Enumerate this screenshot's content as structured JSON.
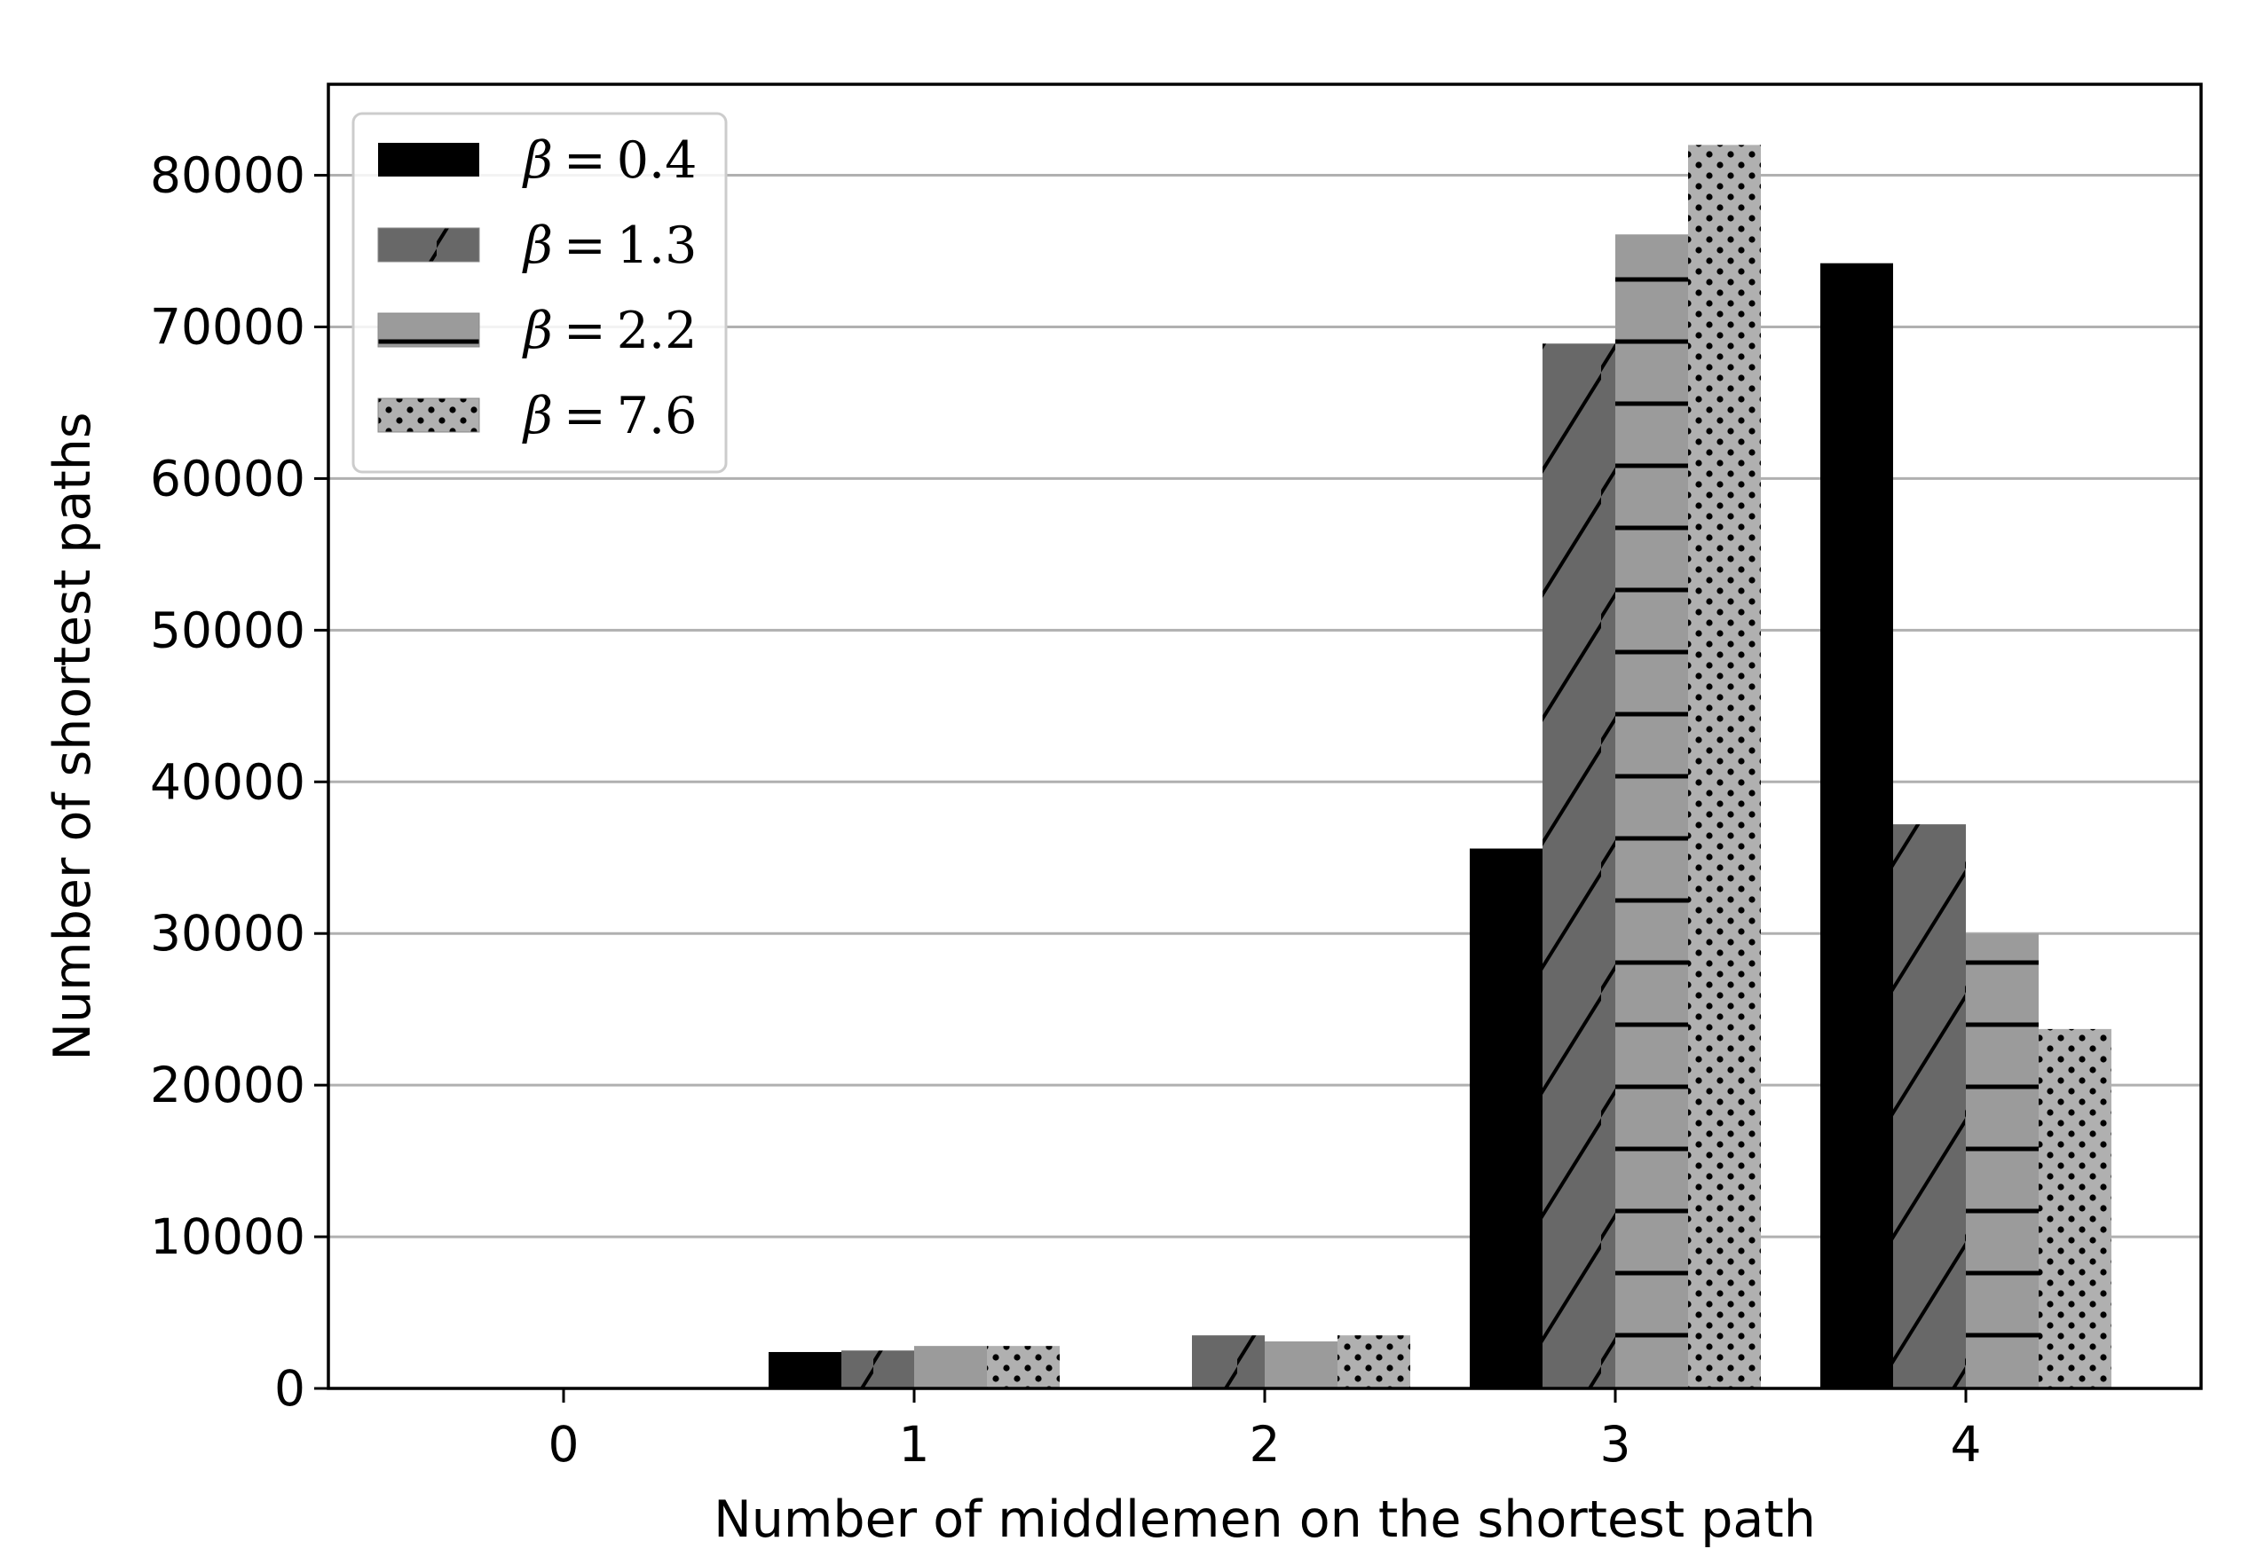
{
  "chart_data": {
    "type": "bar",
    "categories": [
      "0",
      "1",
      "2",
      "3",
      "4"
    ],
    "series": [
      {
        "name": "β = 0.4",
        "beta_symbol": "β",
        "beta_value": "0.4",
        "color": "#000000",
        "pattern": "solid",
        "values": [
          0,
          2400,
          0,
          35600,
          74200
        ]
      },
      {
        "name": "β = 1.3",
        "beta_symbol": "β",
        "beta_value": "1.3",
        "color": "#686868",
        "pattern": "diagonal",
        "values": [
          0,
          2500,
          3500,
          68900,
          37200
        ]
      },
      {
        "name": "β = 2.2",
        "beta_symbol": "β",
        "beta_value": "2.2",
        "color": "#9b9b9b",
        "pattern": "horizontal",
        "values": [
          0,
          2800,
          3100,
          76100,
          30000
        ]
      },
      {
        "name": "β = 7.6",
        "beta_symbol": "β",
        "beta_value": "7.6",
        "color": "#b0b0b0",
        "pattern": "dots",
        "values": [
          0,
          2800,
          3500,
          82000,
          23700
        ]
      }
    ],
    "xlabel": "Number of middlemen on the shortest path",
    "ylabel": "Number of shortest paths",
    "ylim": [
      0,
      86000
    ],
    "yticks": [
      0,
      10000,
      20000,
      30000,
      40000,
      50000,
      60000,
      70000,
      80000
    ],
    "grid": "horizontal",
    "legend_position": "top-left"
  }
}
